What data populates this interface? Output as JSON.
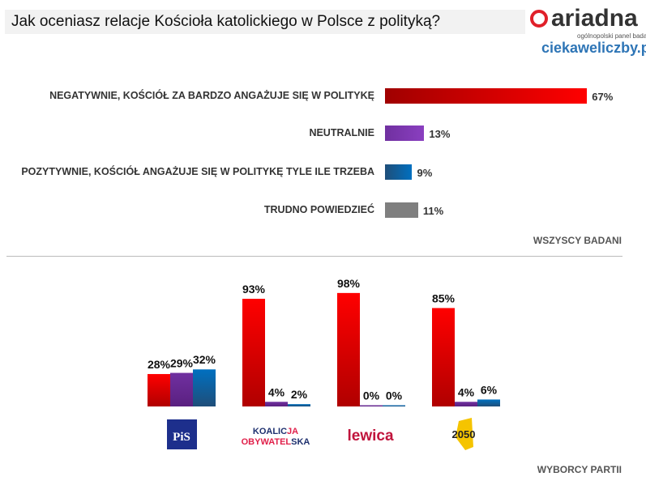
{
  "title": "Jak oceniasz relacje Kościoła katolickiego w Polsce z polityką?",
  "brand": {
    "logo": "ariadna",
    "tagline": "ogólnopolski panel badawczy",
    "site": "ciekaweliczby.pl"
  },
  "colors": {
    "red": "#e00000",
    "purple": "#7030a0",
    "blue": "#0070c0",
    "gray": "#7f7f7f"
  },
  "chart_data": [
    {
      "type": "bar",
      "orientation": "horizontal",
      "section_label": "WSZYSCY BADANI",
      "categories": [
        "NEGATYWNIE, KOŚCIÓŁ ZA BARDZO ANGAŻUJE SIĘ W POLITYKĘ",
        "NEUTRALNIE",
        "POZYTYWNIE, KOŚCIÓŁ ANGAŻUJE SIĘ W POLITYKĘ TYLE ILE TRZEBA",
        "TRUDNO POWIEDZIEĆ"
      ],
      "values": [
        67,
        13,
        9,
        11
      ],
      "labels": [
        "67%",
        "13%",
        "9%",
        "11%"
      ],
      "colors": [
        "red",
        "purple",
        "blue",
        "gray"
      ]
    },
    {
      "type": "bar",
      "orientation": "vertical",
      "section_label": "WYBORCY PARTII",
      "categories": [
        "PiS",
        "KOALICJA OBYWATELSKA",
        "lewica",
        "2050"
      ],
      "series": [
        {
          "color": "red",
          "values": [
            28,
            93,
            98,
            85
          ]
        },
        {
          "color": "purple",
          "values": [
            29,
            4,
            0,
            4
          ]
        },
        {
          "color": "blue",
          "values": [
            32,
            2,
            0,
            6
          ]
        }
      ]
    }
  ]
}
